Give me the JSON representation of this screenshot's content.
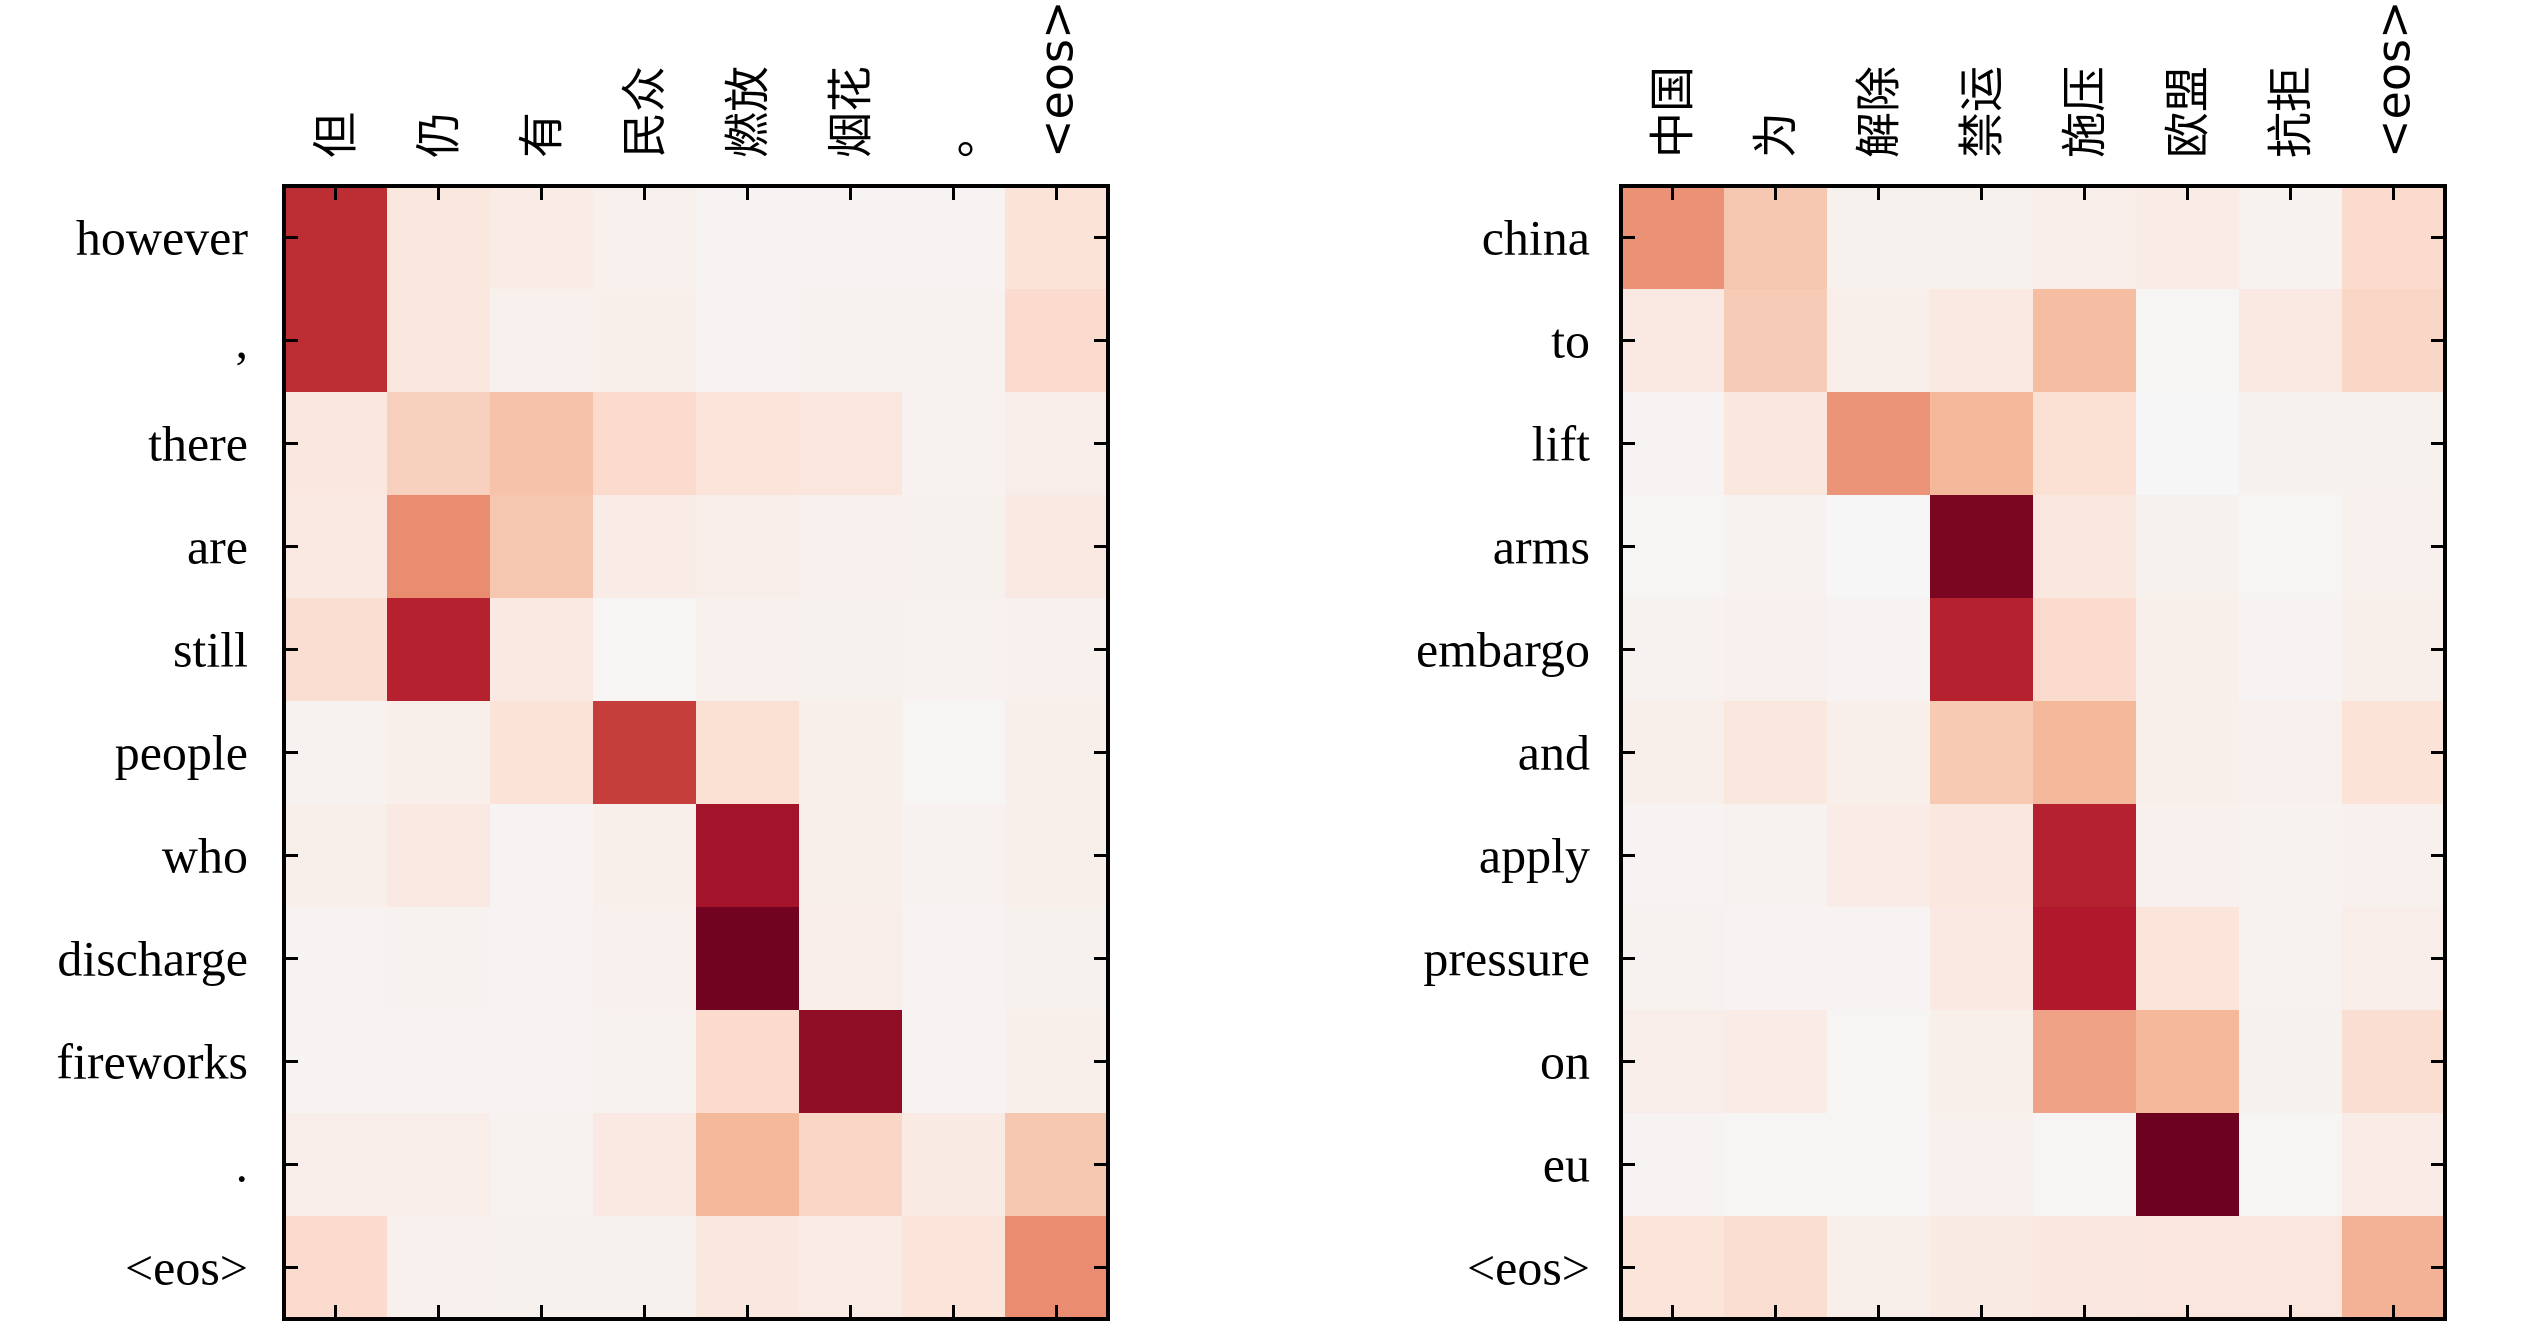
{
  "colors": {
    "low": "#f6f6f6",
    "mid": "#f4a582",
    "high": "#67001f",
    "frame": "#000000"
  },
  "chart_data": [
    {
      "type": "heatmap",
      "title": "",
      "xlabel": "",
      "ylabel": "",
      "x_tick_labels": [
        "但",
        "仍",
        "有",
        "民众",
        "燃放",
        "烟花",
        "。",
        "<eos>"
      ],
      "y_tick_labels": [
        "however",
        ",",
        "there",
        "are",
        "still",
        "people",
        "who",
        "discharge",
        "fireworks",
        ".",
        "<eos>"
      ],
      "value_range": [
        0,
        1
      ],
      "values": [
        [
          0.78,
          0.12,
          0.08,
          0.05,
          0.02,
          0.02,
          0.02,
          0.15
        ],
        [
          0.78,
          0.12,
          0.05,
          0.06,
          0.02,
          0.03,
          0.03,
          0.18
        ],
        [
          0.12,
          0.22,
          0.28,
          0.18,
          0.14,
          0.13,
          0.03,
          0.07
        ],
        [
          0.1,
          0.48,
          0.26,
          0.08,
          0.07,
          0.05,
          0.04,
          0.1
        ],
        [
          0.17,
          0.82,
          0.1,
          0.01,
          0.05,
          0.04,
          0.03,
          0.05
        ],
        [
          0.03,
          0.06,
          0.15,
          0.72,
          0.16,
          0.06,
          0.01,
          0.06
        ],
        [
          0.06,
          0.1,
          0.02,
          0.06,
          0.88,
          0.06,
          0.03,
          0.06
        ],
        [
          0.02,
          0.03,
          0.02,
          0.05,
          0.98,
          0.07,
          0.02,
          0.04
        ],
        [
          0.02,
          0.02,
          0.02,
          0.03,
          0.18,
          0.92,
          0.02,
          0.06
        ],
        [
          0.07,
          0.07,
          0.03,
          0.1,
          0.32,
          0.2,
          0.09,
          0.26
        ],
        [
          0.18,
          0.05,
          0.04,
          0.04,
          0.12,
          0.08,
          0.14,
          0.48
        ]
      ]
    },
    {
      "type": "heatmap",
      "title": "",
      "xlabel": "",
      "ylabel": "",
      "x_tick_labels": [
        "中国",
        "为",
        "解除",
        "禁运",
        "施压",
        "欧盟",
        "抗拒",
        "<eos>"
      ],
      "y_tick_labels": [
        "china",
        "to",
        "lift",
        "arms",
        "embargo",
        "and",
        "apply",
        "pressure",
        "on",
        "eu",
        "<eos>"
      ],
      "value_range": [
        0,
        1
      ],
      "values": [
        [
          0.46,
          0.26,
          0.04,
          0.04,
          0.07,
          0.08,
          0.03,
          0.18
        ],
        [
          0.1,
          0.24,
          0.06,
          0.1,
          0.3,
          0.01,
          0.1,
          0.2
        ],
        [
          0.02,
          0.12,
          0.45,
          0.32,
          0.16,
          0.0,
          0.04,
          0.04
        ],
        [
          0.01,
          0.03,
          0.0,
          0.96,
          0.12,
          0.04,
          0.01,
          0.05
        ],
        [
          0.03,
          0.05,
          0.02,
          0.82,
          0.18,
          0.06,
          0.02,
          0.06
        ],
        [
          0.06,
          0.12,
          0.06,
          0.25,
          0.32,
          0.06,
          0.05,
          0.15
        ],
        [
          0.02,
          0.03,
          0.08,
          0.12,
          0.82,
          0.05,
          0.03,
          0.05
        ],
        [
          0.03,
          0.02,
          0.02,
          0.1,
          0.85,
          0.14,
          0.03,
          0.07
        ],
        [
          0.07,
          0.08,
          0.01,
          0.06,
          0.4,
          0.32,
          0.04,
          0.17
        ],
        [
          0.02,
          0.01,
          0.01,
          0.05,
          0.01,
          0.99,
          0.01,
          0.08
        ],
        [
          0.14,
          0.17,
          0.06,
          0.09,
          0.11,
          0.13,
          0.13,
          0.34
        ]
      ]
    }
  ]
}
